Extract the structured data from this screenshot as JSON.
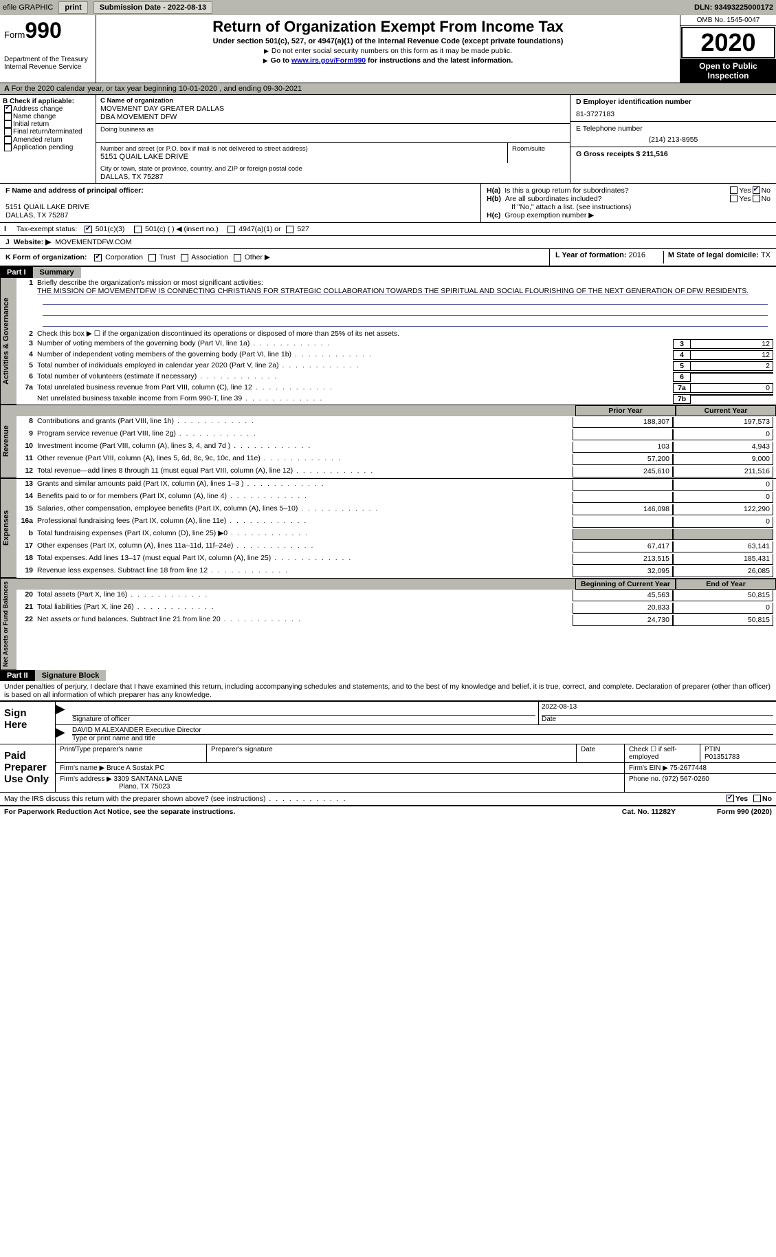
{
  "topbar": {
    "efile": "efile GRAPHIC",
    "print": "print",
    "subdate_label": "Submission Date - ",
    "subdate": "2022-08-13",
    "dln_label": "DLN: ",
    "dln": "93493225000172"
  },
  "header": {
    "form_prefix": "Form",
    "form_num": "990",
    "dept1": "Department of the Treasury",
    "dept2": "Internal Revenue Service",
    "title": "Return of Organization Exempt From Income Tax",
    "subtitle": "Under section 501(c), 527, or 4947(a)(1) of the Internal Revenue Code (except private foundations)",
    "note1": "Do not enter social security numbers on this form as it may be made public.",
    "note2_pre": "Go to ",
    "note2_link": "www.irs.gov/Form990",
    "note2_post": " for instructions and the latest information.",
    "omb": "OMB No. 1545-0047",
    "year": "2020",
    "open": "Open to Public Inspection"
  },
  "rowA": "For the 2020 calendar year, or tax year beginning 10-01-2020    , and ending 09-30-2021",
  "boxB": {
    "hdr": "B Check if applicable:",
    "addr_change": "Address change",
    "name_change": "Name change",
    "initial": "Initial return",
    "final": "Final return/terminated",
    "amended": "Amended return",
    "app_pending": "Application pending"
  },
  "boxC": {
    "name_label": "C Name of organization",
    "name1": "MOVEMENT DAY GREATER DALLAS",
    "name2": "DBA MOVEMENT DFW",
    "dba_label": "Doing business as",
    "addr_label": "Number and street (or P.O. box if mail is not delivered to street address)",
    "addr": "5151 QUAIL LAKE DRIVE",
    "room_label": "Room/suite",
    "city_label": "City or town, state or province, country, and ZIP or foreign postal code",
    "city": "DALLAS, TX  75287"
  },
  "boxD": {
    "label": "D Employer identification number",
    "val": "81-3727183"
  },
  "boxE": {
    "label": "E Telephone number",
    "val": "(214) 213-8955"
  },
  "boxG": {
    "label": "G Gross receipts $ ",
    "val": "211,516"
  },
  "boxF": {
    "label": "F  Name and address of principal officer:",
    "addr1": "5151 QUAIL LAKE DRIVE",
    "addr2": "DALLAS, TX  75287"
  },
  "boxH": {
    "a": "Is this a group return for subordinates?",
    "b": "Are all subordinates included?",
    "b_note": "If \"No,\" attach a list. (see instructions)",
    "c": "Group exemption number ▶",
    "yes": "Yes",
    "no": "No"
  },
  "rowI": {
    "label": "Tax-exempt status:",
    "o1": "501(c)(3)",
    "o2": "501(c) (  ) ◀ (insert no.)",
    "o3": "4947(a)(1) or",
    "o4": "527"
  },
  "rowJ": {
    "label": "Website: ▶",
    "val": "MOVEMENTDFW.COM"
  },
  "rowK": {
    "label": "K Form of organization:",
    "o1": "Corporation",
    "o2": "Trust",
    "o3": "Association",
    "o4": "Other ▶"
  },
  "rowL": {
    "label": "L Year of formation: ",
    "val": "2016"
  },
  "rowM": {
    "label": "M State of legal domicile: ",
    "val": "TX"
  },
  "parts": {
    "p1": "Part I",
    "p1t": "Summary",
    "p2": "Part II",
    "p2t": "Signature Block"
  },
  "tabs": {
    "gov": "Activities & Governance",
    "rev": "Revenue",
    "exp": "Expenses",
    "net": "Net Assets or Fund Balances"
  },
  "q1": {
    "label": "Briefly describe the organization's mission or most significant activities:",
    "text": "THE MISSION OF MOVEMENTDFW IS CONNECTING CHRISTIANS FOR STRATEGIC COLLABORATION TOWARDS THE SPIRITUAL AND SOCIAL FLOURISHING OF THE NEXT GENERATION OF DFW RESIDENTS."
  },
  "q2": "Check this box ▶ ☐  if the organization discontinued its operations or disposed of more than 25% of its net assets.",
  "lines_gov": [
    {
      "n": "3",
      "t": "Number of voting members of the governing body (Part VI, line 1a)",
      "box": "3",
      "v": "12"
    },
    {
      "n": "4",
      "t": "Number of independent voting members of the governing body (Part VI, line 1b)",
      "box": "4",
      "v": "12"
    },
    {
      "n": "5",
      "t": "Total number of individuals employed in calendar year 2020 (Part V, line 2a)",
      "box": "5",
      "v": "2"
    },
    {
      "n": "6",
      "t": "Total number of volunteers (estimate if necessary)",
      "box": "6",
      "v": ""
    },
    {
      "n": "7a",
      "t": "Total unrelated business revenue from Part VIII, column (C), line 12",
      "box": "7a",
      "v": "0"
    },
    {
      "n": "",
      "t": "Net unrelated business taxable income from Form 990-T, line 39",
      "box": "7b",
      "v": ""
    }
  ],
  "col_hdr": {
    "py": "Prior Year",
    "cy": "Current Year",
    "bcy": "Beginning of Current Year",
    "eoy": "End of Year"
  },
  "lines_rev": [
    {
      "n": "8",
      "t": "Contributions and grants (Part VIII, line 1h)",
      "py": "188,307",
      "cy": "197,573"
    },
    {
      "n": "9",
      "t": "Program service revenue (Part VIII, line 2g)",
      "py": "",
      "cy": "0"
    },
    {
      "n": "10",
      "t": "Investment income (Part VIII, column (A), lines 3, 4, and 7d )",
      "py": "103",
      "cy": "4,943"
    },
    {
      "n": "11",
      "t": "Other revenue (Part VIII, column (A), lines 5, 6d, 8c, 9c, 10c, and 11e)",
      "py": "57,200",
      "cy": "9,000"
    },
    {
      "n": "12",
      "t": "Total revenue—add lines 8 through 11 (must equal Part VIII, column (A), line 12)",
      "py": "245,610",
      "cy": "211,516"
    }
  ],
  "lines_exp": [
    {
      "n": "13",
      "t": "Grants and similar amounts paid (Part IX, column (A), lines 1–3 )",
      "py": "",
      "cy": "0"
    },
    {
      "n": "14",
      "t": "Benefits paid to or for members (Part IX, column (A), line 4)",
      "py": "",
      "cy": "0"
    },
    {
      "n": "15",
      "t": "Salaries, other compensation, employee benefits (Part IX, column (A), lines 5–10)",
      "py": "146,098",
      "cy": "122,290"
    },
    {
      "n": "16a",
      "t": "Professional fundraising fees (Part IX, column (A), line 11e)",
      "py": "",
      "cy": "0"
    },
    {
      "n": "b",
      "t": "Total fundraising expenses (Part IX, column (D), line 25) ▶0",
      "py": "SHADE",
      "cy": "SHADE"
    },
    {
      "n": "17",
      "t": "Other expenses (Part IX, column (A), lines 11a–11d, 11f–24e)",
      "py": "67,417",
      "cy": "63,141"
    },
    {
      "n": "18",
      "t": "Total expenses. Add lines 13–17 (must equal Part IX, column (A), line 25)",
      "py": "213,515",
      "cy": "185,431"
    },
    {
      "n": "19",
      "t": "Revenue less expenses. Subtract line 18 from line 12",
      "py": "32,095",
      "cy": "26,085"
    }
  ],
  "lines_net": [
    {
      "n": "20",
      "t": "Total assets (Part X, line 16)",
      "py": "45,563",
      "cy": "50,815"
    },
    {
      "n": "21",
      "t": "Total liabilities (Part X, line 26)",
      "py": "20,833",
      "cy": "0"
    },
    {
      "n": "22",
      "t": "Net assets or fund balances. Subtract line 21 from line 20",
      "py": "24,730",
      "cy": "50,815"
    }
  ],
  "penalties": "Under penalties of perjury, I declare that I have examined this return, including accompanying schedules and statements, and to the best of my knowledge and belief, it is true, correct, and complete. Declaration of preparer (other than officer) is based on all information of which preparer has any knowledge.",
  "sign": {
    "here": "Sign Here",
    "sig_officer": "Signature of officer",
    "date": "Date",
    "sig_date": "2022-08-13",
    "name": "DAVID M ALEXANDER  Executive Director",
    "name_label": "Type or print name and title"
  },
  "paid": {
    "label": "Paid Preparer Use Only",
    "pt_name": "Print/Type preparer's name",
    "pt_sig": "Preparer's signature",
    "pt_date": "Date",
    "pt_check": "Check ☐ if self-employed",
    "ptin_l": "PTIN",
    "ptin": "P01351783",
    "firm_name_l": "Firm's name    ▶ ",
    "firm_name": "Bruce A Sostak PC",
    "firm_ein_l": "Firm's EIN ▶ ",
    "firm_ein": "75-2677448",
    "firm_addr_l": "Firm's address ▶ ",
    "firm_addr1": "3309 SANTANA LANE",
    "firm_addr2": "Plano, TX  75023",
    "phone_l": "Phone no. ",
    "phone": "(972) 567-0260"
  },
  "discuss": "May the IRS discuss this return with the preparer shown above? (see instructions)",
  "footer": {
    "pra": "For Paperwork Reduction Act Notice, see the separate instructions.",
    "cat": "Cat. No. 11282Y",
    "form": "Form 990 (2020)"
  }
}
